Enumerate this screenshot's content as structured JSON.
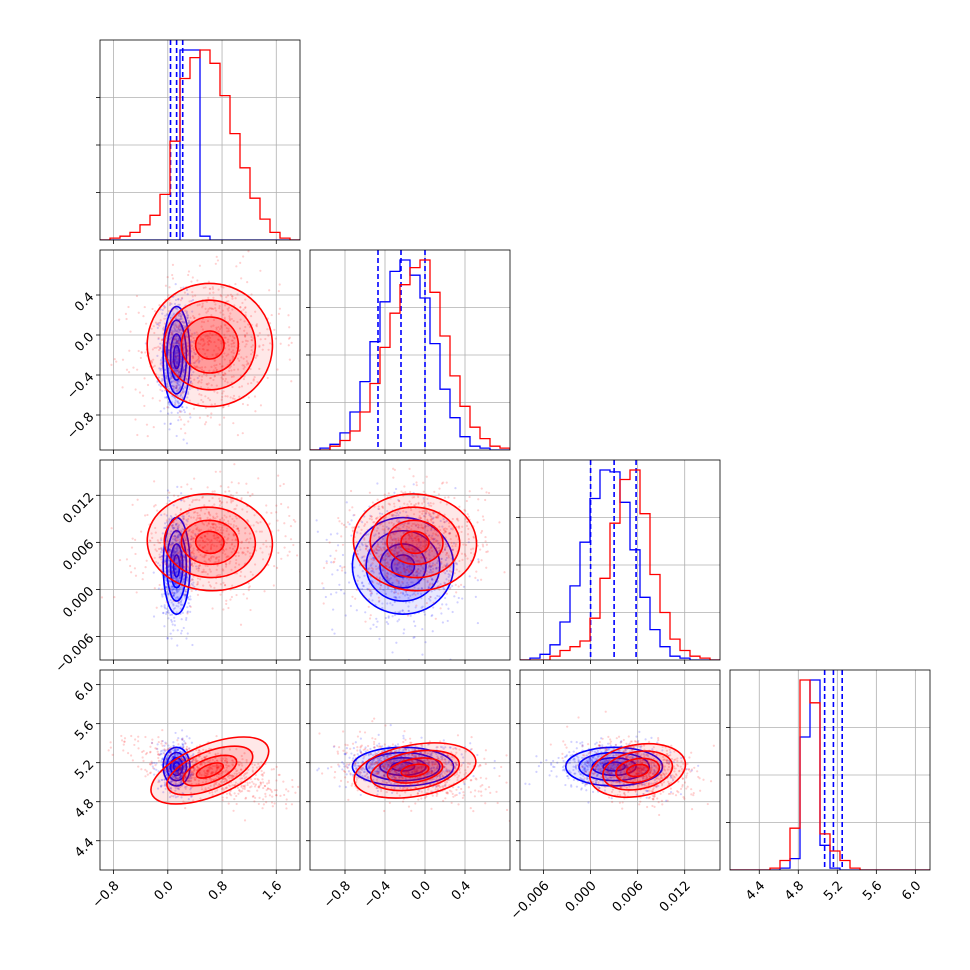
{
  "chart_data": {
    "type": "corner",
    "colors": {
      "blue": "#0000ff",
      "red": "#ff0000"
    },
    "grid": true,
    "parameters": [
      {
        "range": [
          -1.0,
          1.95
        ],
        "ticks": [
          -0.8,
          0.0,
          0.8,
          1.6
        ],
        "tick_labels": [
          "−0.8",
          "0.0",
          "0.8",
          "1.6"
        ]
      },
      {
        "range": [
          -1.15,
          0.85
        ],
        "ticks": [
          -0.8,
          -0.4,
          0.0,
          0.4
        ],
        "tick_labels": [
          "−0.8",
          "−0.4",
          "0.0",
          "0.4"
        ]
      },
      {
        "range": [
          -0.009,
          0.0165
        ],
        "ticks": [
          -0.006,
          0.0,
          0.006,
          0.012
        ],
        "tick_labels": [
          "−0.006",
          "0.000",
          "0.006",
          "0.012"
        ]
      },
      {
        "range": [
          4.1,
          6.15
        ],
        "ticks": [
          4.4,
          4.8,
          5.2,
          5.6,
          6.0
        ],
        "tick_labels": [
          "4.4",
          "4.8",
          "5.2",
          "5.6",
          "6.0"
        ]
      }
    ],
    "series": [
      {
        "name": "",
        "color": "blue",
        "mean": [
          0.13,
          -0.22,
          0.003,
          5.16
        ],
        "std": [
          0.09,
          0.23,
          0.0028,
          0.09
        ],
        "quantiles": [
          [
            0.04,
            0.13,
            0.22
          ],
          [
            -0.47,
            -0.24,
            0.0
          ],
          [
            0.0,
            0.003,
            0.0058
          ],
          [
            5.07,
            5.16,
            5.25
          ]
        ],
        "hist": [
          [
            0,
            0,
            0,
            0,
            0,
            0,
            0,
            0,
            1.0,
            1.0,
            0.02,
            0,
            0,
            0,
            0,
            0,
            0,
            0,
            0,
            0
          ],
          [
            0,
            0.01,
            0.03,
            0.09,
            0.2,
            0.36,
            0.57,
            0.78,
            0.94,
            1.0,
            0.92,
            0.8,
            0.56,
            0.32,
            0.17,
            0.07,
            0.02,
            0.01,
            0,
            0
          ],
          [
            0,
            0.01,
            0.03,
            0.08,
            0.2,
            0.39,
            0.62,
            0.85,
            1.0,
            0.99,
            0.83,
            0.58,
            0.33,
            0.16,
            0.07,
            0.02,
            0.01,
            0,
            0,
            0
          ],
          [
            0,
            0,
            0,
            0,
            0,
            0.01,
            0.06,
            0.7,
            1.0,
            0.13,
            0.01,
            0,
            0,
            0,
            0,
            0,
            0,
            0,
            0,
            0
          ]
        ]
      },
      {
        "name": "",
        "color": "red",
        "mean": [
          0.62,
          -0.1,
          0.006,
          5.12
        ],
        "std": [
          0.42,
          0.28,
          0.0028,
          0.12
        ],
        "hist": [
          [
            0,
            0.01,
            0.02,
            0.04,
            0.08,
            0.13,
            0.24,
            0.52,
            0.85,
            0.96,
            1.0,
            0.93,
            0.76,
            0.56,
            0.38,
            0.22,
            0.11,
            0.04,
            0.01,
            0
          ],
          [
            0,
            0,
            0.02,
            0.05,
            0.1,
            0.2,
            0.35,
            0.54,
            0.72,
            0.87,
            0.96,
            1.0,
            0.83,
            0.6,
            0.39,
            0.23,
            0.12,
            0.06,
            0.02,
            0.01
          ],
          [
            0,
            0,
            0,
            0.02,
            0.05,
            0.07,
            0.1,
            0.22,
            0.43,
            0.72,
            0.95,
            1.0,
            0.77,
            0.45,
            0.25,
            0.11,
            0.05,
            0.02,
            0.01,
            0
          ],
          [
            0,
            0,
            0,
            0,
            0.01,
            0.05,
            0.22,
            1.0,
            0.88,
            0.19,
            0.1,
            0.05,
            0.01,
            0,
            0,
            0,
            0,
            0,
            0,
            0
          ]
        ]
      }
    ]
  }
}
